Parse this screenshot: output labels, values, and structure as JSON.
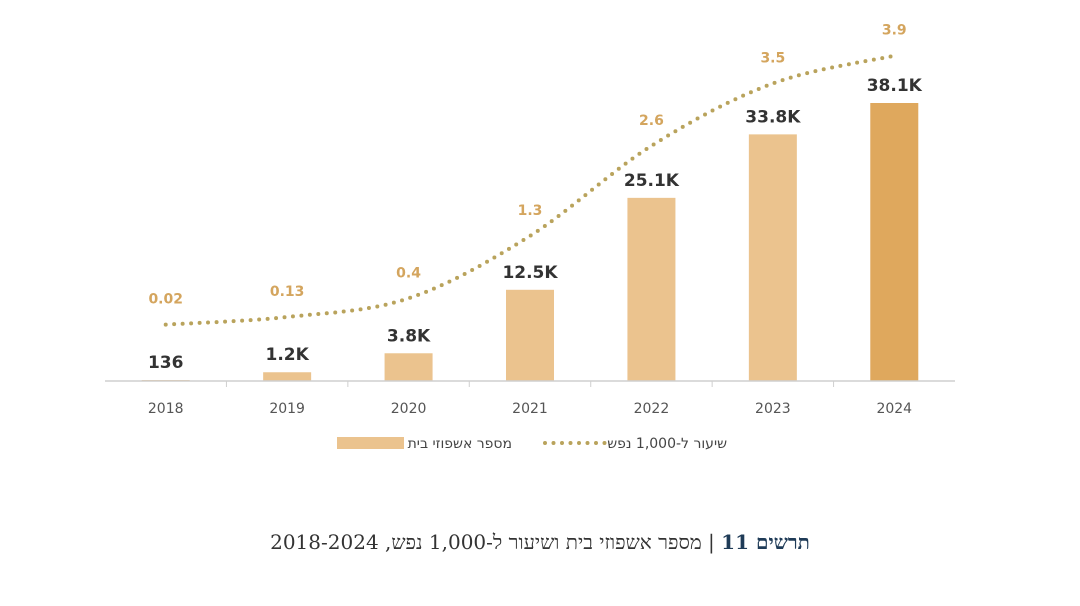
{
  "chart_data": {
    "type": "bar",
    "categories": [
      "2018",
      "2019",
      "2020",
      "2021",
      "2022",
      "2023",
      "2024"
    ],
    "series": [
      {
        "name": "מספר אשפוזי בית",
        "kind": "bar",
        "values": [
          136,
          1200,
          3800,
          12500,
          25100,
          33800,
          38100
        ],
        "value_labels": [
          "136",
          "1.2K",
          "3.8K",
          "12.5K",
          "25.1K",
          "33.8K",
          "38.1K"
        ]
      },
      {
        "name": "שיעור ל-1,000 נפש",
        "kind": "line",
        "style": "dotted",
        "values": [
          0.02,
          0.13,
          0.4,
          1.3,
          2.6,
          3.5,
          3.9
        ],
        "value_labels": [
          "0.02",
          "0.13",
          "0.4",
          "1.3",
          "2.6",
          "3.5",
          "3.9"
        ]
      }
    ],
    "legend_position": "bottom",
    "grid": false,
    "colors": {
      "bar": "#ebc38e",
      "bar_highlight": "#dfa85d",
      "line": "#b9a35c",
      "rate_label": "#d4a55e"
    }
  },
  "caption": {
    "figure_label": "תרשים 11",
    "separator": "|",
    "text": "מספר אשפוזי בית ושיעור ל-1,000 נפש, 2018-2024"
  }
}
